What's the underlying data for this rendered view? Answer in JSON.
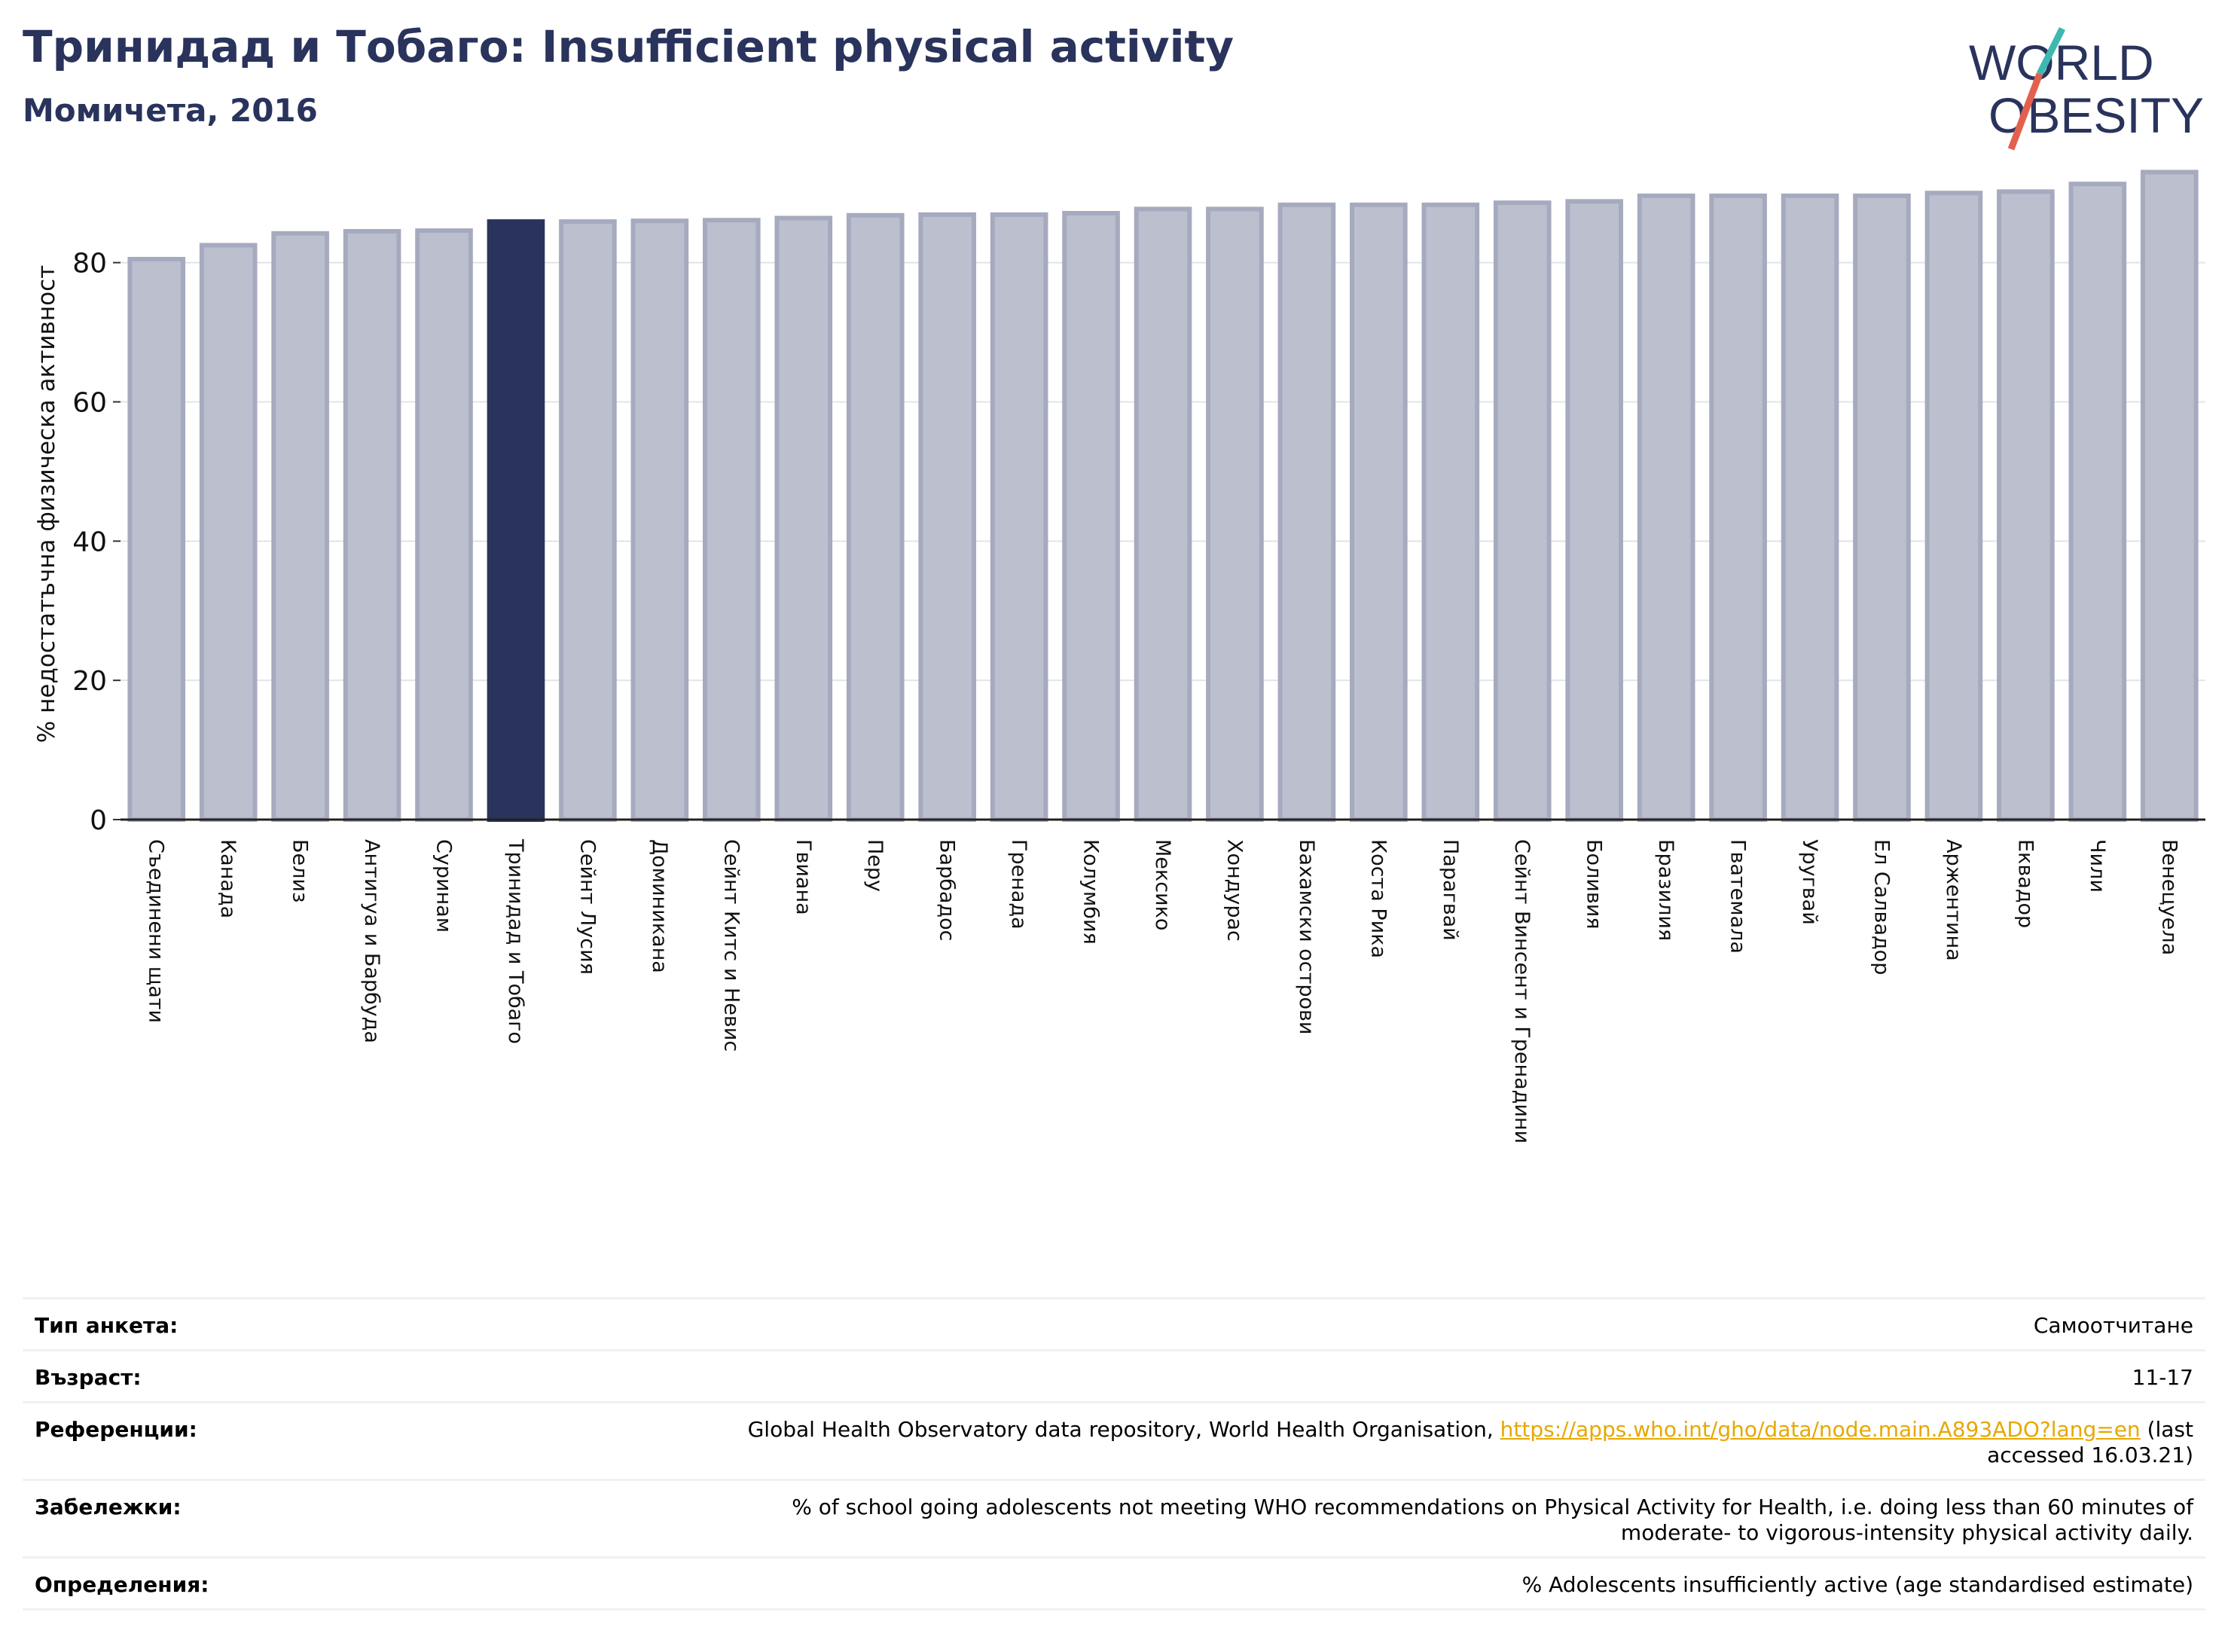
{
  "header": {
    "title": "Тринидад и Тобаго: Insufficient physical activity",
    "subtitle": "Момичета, 2016"
  },
  "logo": {
    "line1": "WORLD",
    "line2": "OBESITY"
  },
  "colors": {
    "highlight": "#29335c",
    "bar_fill": "#bcbfce",
    "bar_stroke": "#a6aabf",
    "link": "#e6a800",
    "logo_teal": "#3fb8b0",
    "logo_red": "#e4604e"
  },
  "chart_data": {
    "type": "bar",
    "ylabel": "% недостатъчна физическа активност",
    "ylim": [
      0,
      95
    ],
    "yticks": [
      0,
      20,
      40,
      60,
      80
    ],
    "grid": true,
    "highlight_category": "Тринидад и Тобаго",
    "categories": [
      "Съединени щати",
      "Канада",
      "Белиз",
      "Антигуа и Барбуда",
      "Суринам",
      "Тринидад и Тобаго",
      "Сейнт Лусия",
      "Доминикана",
      "Сейнт Китс и Невис",
      "Гвиана",
      "Перу",
      "Барбадос",
      "Гренада",
      "Колумбия",
      "Мексико",
      "Хондурас",
      "Бахамски острови",
      "Коста Рика",
      "Парагвай",
      "Сейнт Винсент и Гренадини",
      "Боливия",
      "Бразилия",
      "Гватемала",
      "Уругвай",
      "Ел Салвадор",
      "Аржентина",
      "Еквадор",
      "Чили",
      "Венецуела"
    ],
    "values": [
      80.5,
      82.5,
      84.2,
      84.5,
      84.6,
      85.9,
      85.9,
      86.0,
      86.1,
      86.4,
      86.8,
      86.9,
      86.9,
      87.1,
      87.7,
      87.7,
      88.3,
      88.3,
      88.3,
      88.6,
      88.8,
      89.6,
      89.6,
      89.6,
      89.6,
      90.0,
      90.2,
      91.3,
      93.0
    ]
  },
  "info": {
    "rows": [
      {
        "label": "Тип анкета:",
        "value": "Самоотчитане"
      },
      {
        "label": "Възраст:",
        "value": "11-17"
      },
      {
        "label": "Референции:",
        "value_pre": "Global Health Observatory data repository, World Health Organisation, ",
        "link": "https://apps.who.int/gho/data/node.main.A893ADO?lang=en",
        "value_post": " (last accessed 16.03.21)"
      },
      {
        "label": "Забележки:",
        "value": "% of school going adolescents not meeting WHO recommendations on Physical Activity for Health, i.e. doing less than 60 minutes of moderate- to vigorous-intensity physical activity daily."
      },
      {
        "label": "Определения:",
        "value": "% Adolescents insufficiently active (age standardised estimate)"
      }
    ]
  }
}
